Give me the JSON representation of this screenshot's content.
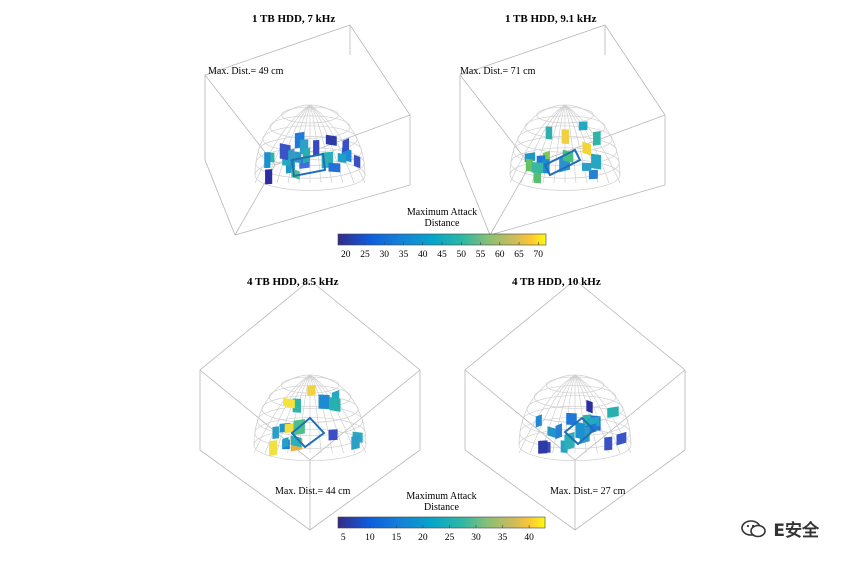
{
  "chart_data": [
    {
      "type": "3d-surface-patches",
      "title": "1 TB HDD, 7 kHz",
      "annotation": "Max. Dist.= 49 cm",
      "patch_colors": [
        "#3a4fc4",
        "#1f96c8",
        "#2fb5a8",
        "#3f6ee0",
        "#2a2ea0",
        "#22a8c0",
        "#4cc08a",
        "#1e7bd8",
        "#2ea0c6",
        "#27b0b0",
        "#3a54c8",
        "#1d88d6",
        "#2e9ac4",
        "#2bb0b8",
        "#3a48c0",
        "#1fa0c8",
        "#2570d8",
        "#2c3aa8",
        "#1d90d0",
        "#3a50c8",
        "#2e9cc4"
      ]
    },
    {
      "type": "3d-surface-patches",
      "title": "1 TB HDD, 9.1 kHz",
      "annotation": "Max. Dist.= 71 cm",
      "patch_colors": [
        "#1f96c8",
        "#67c064",
        "#7ec85a",
        "#2fb5a8",
        "#ecc83a",
        "#f4d43a",
        "#2a90d0",
        "#46c080",
        "#22a8c0",
        "#1f78d8",
        "#2eb0b0",
        "#56c070",
        "#1d8ad2",
        "#27a6c2",
        "#38b8a0",
        "#f0d040",
        "#2580d6",
        "#2aa0c6"
      ]
    },
    {
      "type": "3d-surface-patches",
      "title": "4 TB HDD, 8.5 kHz",
      "annotation": "Max. Dist.= 44 cm",
      "patch_colors": [
        "#2fb5a8",
        "#e8b040",
        "#f6e23a",
        "#1f96c8",
        "#2bb0b8",
        "#f4dc3a",
        "#22a8c0",
        "#1d8ad2",
        "#3a4fc4",
        "#2ea8bc",
        "#f2d23c",
        "#4cc08a",
        "#1e7bd8",
        "#2aa0c6",
        "#27b0b0",
        "#2c9ec4",
        "#22a0c8",
        "#f0e040"
      ]
    },
    {
      "type": "3d-surface-patches",
      "title": "4 TB HDD, 10 kHz",
      "annotation": "Max. Dist.= 27 cm",
      "patch_colors": [
        "#2a2ea0",
        "#3a48c0",
        "#1f78d8",
        "#2fb5a8",
        "#1d88d6",
        "#2570d8",
        "#3a54c8",
        "#22a8c0",
        "#2c3aa8",
        "#1e7bd8",
        "#2e9ac4",
        "#1d90d0",
        "#3a50c8",
        "#2aa0c6",
        "#2bb0b8",
        "#27b0b0",
        "#1f96c8",
        "#2580d6"
      ]
    }
  ],
  "colorbars": [
    {
      "title_line1": "Maximum Attack",
      "title_line2": "Distance",
      "ticks": [
        "20",
        "25",
        "30",
        "35",
        "40",
        "45",
        "50",
        "55",
        "60",
        "65",
        "70"
      ],
      "range": [
        18,
        72
      ]
    },
    {
      "title_line1": "Maximum Attack",
      "title_line2": "Distance",
      "ticks": [
        "5",
        "10",
        "15",
        "20",
        "25",
        "30",
        "35",
        "40"
      ],
      "range": [
        4,
        43
      ]
    }
  ],
  "watermark": {
    "text": "E安全"
  }
}
